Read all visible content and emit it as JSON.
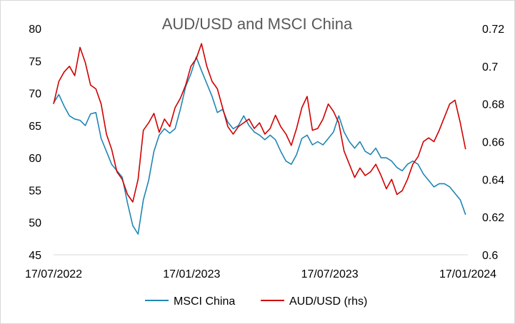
{
  "chart_data": {
    "type": "line",
    "title": "AUD/USD and MSCI China",
    "x_tick_labels": [
      "17/07/2022",
      "17/01/2023",
      "17/07/2023",
      "17/01/2024"
    ],
    "x_range": [
      "2022-07-17",
      "2024-01-17"
    ],
    "y_left": {
      "ylim": [
        45,
        80
      ],
      "tick_labels": [
        "45",
        "50",
        "55",
        "60",
        "65",
        "70",
        "75",
        "80"
      ]
    },
    "y_right": {
      "ylim": [
        0.6,
        0.72
      ],
      "tick_labels": [
        "0.6",
        "0.62",
        "0.64",
        "0.66",
        "0.68",
        "0.7",
        "0.72"
      ]
    },
    "grid": false,
    "legend_position": "bottom",
    "series": [
      {
        "name": "MSCI China",
        "axis": "left",
        "color": "#1f86b3",
        "points": [
          [
            "2022-07-17",
            68.5
          ],
          [
            "2022-07-24",
            69.8
          ],
          [
            "2022-07-31",
            68.0
          ],
          [
            "2022-08-07",
            66.5
          ],
          [
            "2022-08-14",
            66.0
          ],
          [
            "2022-08-21",
            65.8
          ],
          [
            "2022-08-28",
            65.0
          ],
          [
            "2022-09-04",
            66.8
          ],
          [
            "2022-09-11",
            67.0
          ],
          [
            "2022-09-18",
            63.0
          ],
          [
            "2022-09-25",
            61.0
          ],
          [
            "2022-10-02",
            59.0
          ],
          [
            "2022-10-09",
            58.0
          ],
          [
            "2022-10-16",
            57.0
          ],
          [
            "2022-10-23",
            53.0
          ],
          [
            "2022-10-30",
            49.5
          ],
          [
            "2022-11-06",
            48.2
          ],
          [
            "2022-11-13",
            53.5
          ],
          [
            "2022-11-20",
            56.5
          ],
          [
            "2022-11-27",
            61.0
          ],
          [
            "2022-12-04",
            63.5
          ],
          [
            "2022-12-11",
            64.5
          ],
          [
            "2022-12-18",
            63.8
          ],
          [
            "2022-12-25",
            64.5
          ],
          [
            "2023-01-01",
            67.5
          ],
          [
            "2023-01-08",
            71.0
          ],
          [
            "2023-01-15",
            73.0
          ],
          [
            "2023-01-22",
            75.6
          ],
          [
            "2023-01-29",
            73.5
          ],
          [
            "2023-02-05",
            71.5
          ],
          [
            "2023-02-12",
            69.5
          ],
          [
            "2023-02-19",
            67.0
          ],
          [
            "2023-02-26",
            67.5
          ],
          [
            "2023-03-05",
            65.5
          ],
          [
            "2023-03-12",
            64.5
          ],
          [
            "2023-03-19",
            65.0
          ],
          [
            "2023-03-26",
            66.5
          ],
          [
            "2023-04-02",
            65.0
          ],
          [
            "2023-04-09",
            64.0
          ],
          [
            "2023-04-16",
            63.5
          ],
          [
            "2023-04-23",
            62.8
          ],
          [
            "2023-04-30",
            63.5
          ],
          [
            "2023-05-07",
            62.8
          ],
          [
            "2023-05-14",
            61.0
          ],
          [
            "2023-05-21",
            59.5
          ],
          [
            "2023-05-28",
            59.0
          ],
          [
            "2023-06-04",
            60.5
          ],
          [
            "2023-06-11",
            63.0
          ],
          [
            "2023-06-18",
            63.5
          ],
          [
            "2023-06-25",
            62.0
          ],
          [
            "2023-07-02",
            62.5
          ],
          [
            "2023-07-09",
            62.0
          ],
          [
            "2023-07-16",
            63.0
          ],
          [
            "2023-07-23",
            64.0
          ],
          [
            "2023-07-30",
            66.5
          ],
          [
            "2023-08-06",
            64.0
          ],
          [
            "2023-08-13",
            62.5
          ],
          [
            "2023-08-20",
            61.5
          ],
          [
            "2023-08-27",
            62.5
          ],
          [
            "2023-09-03",
            61.0
          ],
          [
            "2023-09-10",
            60.5
          ],
          [
            "2023-09-17",
            61.5
          ],
          [
            "2023-09-24",
            60.0
          ],
          [
            "2023-10-01",
            60.0
          ],
          [
            "2023-10-08",
            59.5
          ],
          [
            "2023-10-15",
            58.5
          ],
          [
            "2023-10-22",
            58.0
          ],
          [
            "2023-10-29",
            59.0
          ],
          [
            "2023-11-05",
            59.5
          ],
          [
            "2023-11-12",
            59.0
          ],
          [
            "2023-11-19",
            57.5
          ],
          [
            "2023-11-26",
            56.5
          ],
          [
            "2023-12-03",
            55.5
          ],
          [
            "2023-12-10",
            56.0
          ],
          [
            "2023-12-17",
            56.0
          ],
          [
            "2023-12-24",
            55.5
          ],
          [
            "2023-12-31",
            54.5
          ],
          [
            "2024-01-07",
            53.5
          ],
          [
            "2024-01-14",
            51.2
          ]
        ]
      },
      {
        "name": "AUD/USD (rhs)",
        "axis": "right",
        "color": "#d00000",
        "points": [
          [
            "2022-07-17",
            0.68
          ],
          [
            "2022-07-24",
            0.692
          ],
          [
            "2022-07-31",
            0.697
          ],
          [
            "2022-08-07",
            0.7
          ],
          [
            "2022-08-14",
            0.695
          ],
          [
            "2022-08-21",
            0.71
          ],
          [
            "2022-08-28",
            0.702
          ],
          [
            "2022-09-04",
            0.69
          ],
          [
            "2022-09-11",
            0.688
          ],
          [
            "2022-09-18",
            0.68
          ],
          [
            "2022-09-25",
            0.664
          ],
          [
            "2022-10-02",
            0.656
          ],
          [
            "2022-10-09",
            0.644
          ],
          [
            "2022-10-16",
            0.64
          ],
          [
            "2022-10-23",
            0.632
          ],
          [
            "2022-10-30",
            0.628
          ],
          [
            "2022-11-06",
            0.64
          ],
          [
            "2022-11-13",
            0.666
          ],
          [
            "2022-11-20",
            0.67
          ],
          [
            "2022-11-27",
            0.675
          ],
          [
            "2022-12-04",
            0.665
          ],
          [
            "2022-12-11",
            0.672
          ],
          [
            "2022-12-18",
            0.668
          ],
          [
            "2022-12-25",
            0.678
          ],
          [
            "2023-01-01",
            0.683
          ],
          [
            "2023-01-08",
            0.69
          ],
          [
            "2023-01-15",
            0.7
          ],
          [
            "2023-01-22",
            0.704
          ],
          [
            "2023-01-29",
            0.712
          ],
          [
            "2023-02-05",
            0.7
          ],
          [
            "2023-02-12",
            0.692
          ],
          [
            "2023-02-19",
            0.688
          ],
          [
            "2023-02-26",
            0.678
          ],
          [
            "2023-03-05",
            0.668
          ],
          [
            "2023-03-12",
            0.664
          ],
          [
            "2023-03-19",
            0.668
          ],
          [
            "2023-03-26",
            0.67
          ],
          [
            "2023-04-02",
            0.672
          ],
          [
            "2023-04-09",
            0.667
          ],
          [
            "2023-04-16",
            0.67
          ],
          [
            "2023-04-23",
            0.664
          ],
          [
            "2023-04-30",
            0.667
          ],
          [
            "2023-05-07",
            0.674
          ],
          [
            "2023-05-14",
            0.668
          ],
          [
            "2023-05-21",
            0.664
          ],
          [
            "2023-05-28",
            0.658
          ],
          [
            "2023-06-04",
            0.667
          ],
          [
            "2023-06-11",
            0.678
          ],
          [
            "2023-06-18",
            0.684
          ],
          [
            "2023-06-25",
            0.666
          ],
          [
            "2023-07-02",
            0.667
          ],
          [
            "2023-07-09",
            0.672
          ],
          [
            "2023-07-16",
            0.68
          ],
          [
            "2023-07-23",
            0.676
          ],
          [
            "2023-07-30",
            0.67
          ],
          [
            "2023-08-06",
            0.655
          ],
          [
            "2023-08-13",
            0.648
          ],
          [
            "2023-08-20",
            0.641
          ],
          [
            "2023-08-27",
            0.646
          ],
          [
            "2023-09-03",
            0.642
          ],
          [
            "2023-09-10",
            0.644
          ],
          [
            "2023-09-17",
            0.648
          ],
          [
            "2023-09-24",
            0.642
          ],
          [
            "2023-10-01",
            0.635
          ],
          [
            "2023-10-08",
            0.64
          ],
          [
            "2023-10-15",
            0.632
          ],
          [
            "2023-10-22",
            0.634
          ],
          [
            "2023-10-29",
            0.64
          ],
          [
            "2023-11-05",
            0.648
          ],
          [
            "2023-11-12",
            0.652
          ],
          [
            "2023-11-19",
            0.66
          ],
          [
            "2023-11-26",
            0.662
          ],
          [
            "2023-12-03",
            0.66
          ],
          [
            "2023-12-10",
            0.666
          ],
          [
            "2023-12-17",
            0.673
          ],
          [
            "2023-12-24",
            0.68
          ],
          [
            "2023-12-31",
            0.682
          ],
          [
            "2024-01-07",
            0.67
          ],
          [
            "2024-01-14",
            0.656
          ]
        ]
      }
    ]
  }
}
